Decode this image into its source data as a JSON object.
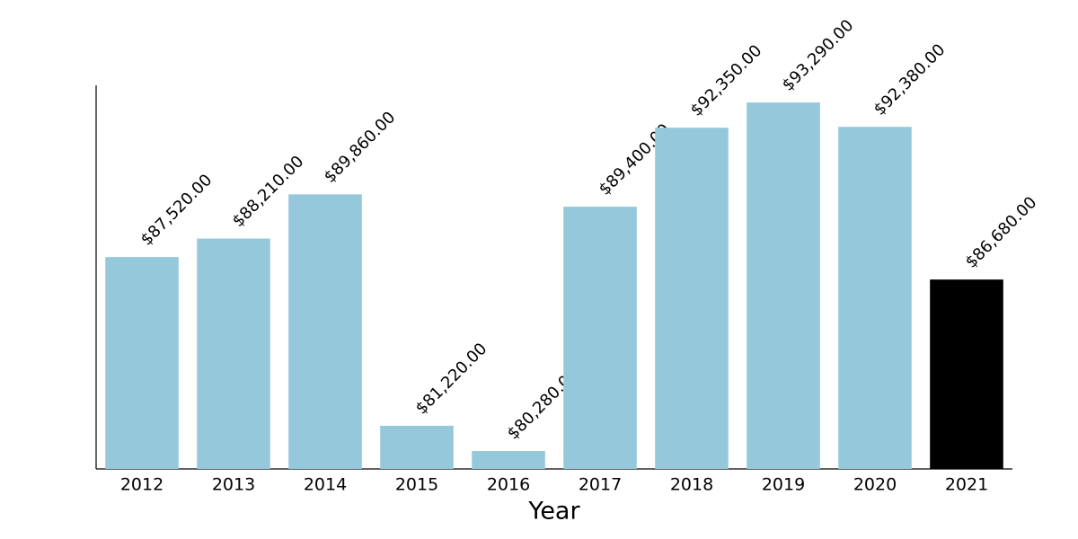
{
  "chart_data": {
    "type": "bar",
    "x_label": "Year",
    "categories": [
      "2012",
      "2013",
      "2014",
      "2015",
      "2016",
      "2017",
      "2018",
      "2019",
      "2020",
      "2021"
    ],
    "values": [
      87520,
      88210,
      89860,
      81220,
      80280,
      89400,
      92350,
      93290,
      92380,
      86680
    ],
    "value_labels": [
      "$87,520.00",
      "$88,210.00",
      "$89,860.00",
      "$81,220.00",
      "$80,280.00",
      "$89,400.00",
      "$92,350.00",
      "$93,290.00",
      "$92,380.00",
      "$86,680.00"
    ],
    "colors": [
      "#96c8dc",
      "#96c8dc",
      "#96c8dc",
      "#96c8dc",
      "#96c8dc",
      "#96c8dc",
      "#96c8dc",
      "#96c8dc",
      "#96c8dc",
      "#000000"
    ],
    "ylim": [
      79610,
      93930
    ]
  }
}
